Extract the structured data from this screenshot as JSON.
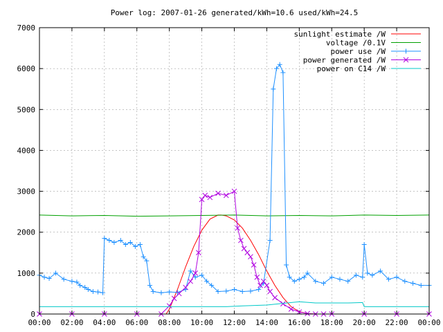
{
  "chart_data": {
    "type": "line",
    "title": "Power log: 2007-01-26 generated/kWh=10.6 used/kWh=24.5",
    "xlabel": "",
    "ylabel": "",
    "x_ticks": [
      "00:00",
      "02:00",
      "04:00",
      "06:00",
      "08:00",
      "10:00",
      "12:00",
      "14:00",
      "16:00",
      "18:00",
      "20:00",
      "22:00",
      "00:00"
    ],
    "xlim": [
      0,
      24
    ],
    "ylim": [
      0,
      7000
    ],
    "y_ticks": [
      0,
      1000,
      2000,
      3000,
      4000,
      5000,
      6000,
      7000
    ],
    "grid": true,
    "legend_position": "top-right",
    "series": [
      {
        "name": "sunlight estimate /W",
        "color": "#ff0000",
        "marker": "none",
        "x": [
          7.8,
          8.0,
          8.5,
          9.0,
          9.5,
          10.0,
          10.5,
          11.0,
          11.2,
          11.5,
          12.0,
          12.5,
          13.0,
          13.5,
          14.0,
          14.5,
          15.0,
          15.5,
          16.0,
          16.5,
          17.0
        ],
        "y": [
          0,
          120,
          600,
          1150,
          1650,
          2050,
          2320,
          2420,
          2420,
          2400,
          2300,
          2100,
          1800,
          1450,
          1050,
          700,
          400,
          180,
          60,
          10,
          0
        ]
      },
      {
        "name": "voltage /0.1V",
        "color": "#00a000",
        "marker": "none",
        "x": [
          0,
          2,
          4,
          6,
          8,
          10,
          12,
          14,
          16,
          18,
          20,
          22,
          24
        ],
        "y": [
          2420,
          2400,
          2410,
          2390,
          2400,
          2410,
          2420,
          2400,
          2410,
          2400,
          2420,
          2410,
          2420
        ]
      },
      {
        "name": "power use /W",
        "color": "#1e90ff",
        "marker": "plus",
        "x": [
          0.0,
          0.3,
          0.6,
          1.0,
          1.5,
          2.0,
          2.3,
          2.5,
          2.8,
          3.0,
          3.3,
          3.6,
          3.9,
          4.0,
          4.3,
          4.6,
          5.0,
          5.3,
          5.6,
          5.9,
          6.2,
          6.4,
          6.6,
          6.8,
          7.0,
          7.5,
          8.0,
          8.5,
          9.0,
          9.3,
          9.6,
          10.0,
          10.3,
          10.6,
          11.0,
          11.5,
          12.0,
          12.5,
          13.0,
          13.5,
          13.8,
          14.2,
          14.4,
          14.6,
          14.8,
          15.0,
          15.2,
          15.4,
          15.7,
          16.0,
          16.3,
          16.5,
          17.0,
          17.5,
          18.0,
          18.5,
          19.0,
          19.5,
          19.9,
          20.0,
          20.2,
          20.5,
          21.0,
          21.5,
          22.0,
          22.5,
          23.0,
          23.5,
          24.0
        ],
        "y": [
          950,
          900,
          870,
          1000,
          850,
          800,
          780,
          700,
          650,
          600,
          550,
          540,
          520,
          1850,
          1800,
          1750,
          1800,
          1700,
          1750,
          1650,
          1700,
          1400,
          1300,
          700,
          550,
          520,
          540,
          530,
          600,
          1050,
          900,
          950,
          800,
          700,
          550,
          560,
          600,
          550,
          560,
          600,
          750,
          1800,
          5500,
          6000,
          6100,
          5900,
          1200,
          900,
          800,
          850,
          900,
          1000,
          800,
          750,
          900,
          850,
          800,
          950,
          900,
          1700,
          1000,
          950,
          1050,
          850,
          900,
          800,
          750,
          700,
          700
        ]
      },
      {
        "name": "power generated /W",
        "color": "#b000e0",
        "marker": "cross",
        "x": [
          0.0,
          2.0,
          4.0,
          6.0,
          7.5,
          8.0,
          8.3,
          8.6,
          9.0,
          9.3,
          9.6,
          9.8,
          10.0,
          10.2,
          10.5,
          11.0,
          11.5,
          12.0,
          12.2,
          12.4,
          12.6,
          12.8,
          13.0,
          13.2,
          13.4,
          13.6,
          13.8,
          14.0,
          14.2,
          14.5,
          15.0,
          15.5,
          16.0,
          16.5,
          17.0,
          17.5,
          18.0,
          20.0,
          22.0,
          24.0
        ],
        "y": [
          0,
          0,
          0,
          0,
          0,
          200,
          380,
          500,
          650,
          800,
          1000,
          1500,
          2800,
          2900,
          2850,
          2950,
          2900,
          3000,
          2100,
          1800,
          1600,
          1500,
          1400,
          1200,
          900,
          700,
          800,
          700,
          550,
          400,
          250,
          120,
          50,
          10,
          0,
          0,
          0,
          0,
          0,
          0
        ]
      },
      {
        "name": "power on C14 /W",
        "color": "#00c8c8",
        "marker": "none",
        "x": [
          0,
          4,
          8,
          11.5,
          12.5,
          14,
          16,
          17,
          19,
          19.9,
          20.0,
          22,
          24
        ],
        "y": [
          180,
          180,
          180,
          180,
          200,
          220,
          300,
          270,
          270,
          280,
          180,
          180,
          180
        ]
      }
    ]
  }
}
